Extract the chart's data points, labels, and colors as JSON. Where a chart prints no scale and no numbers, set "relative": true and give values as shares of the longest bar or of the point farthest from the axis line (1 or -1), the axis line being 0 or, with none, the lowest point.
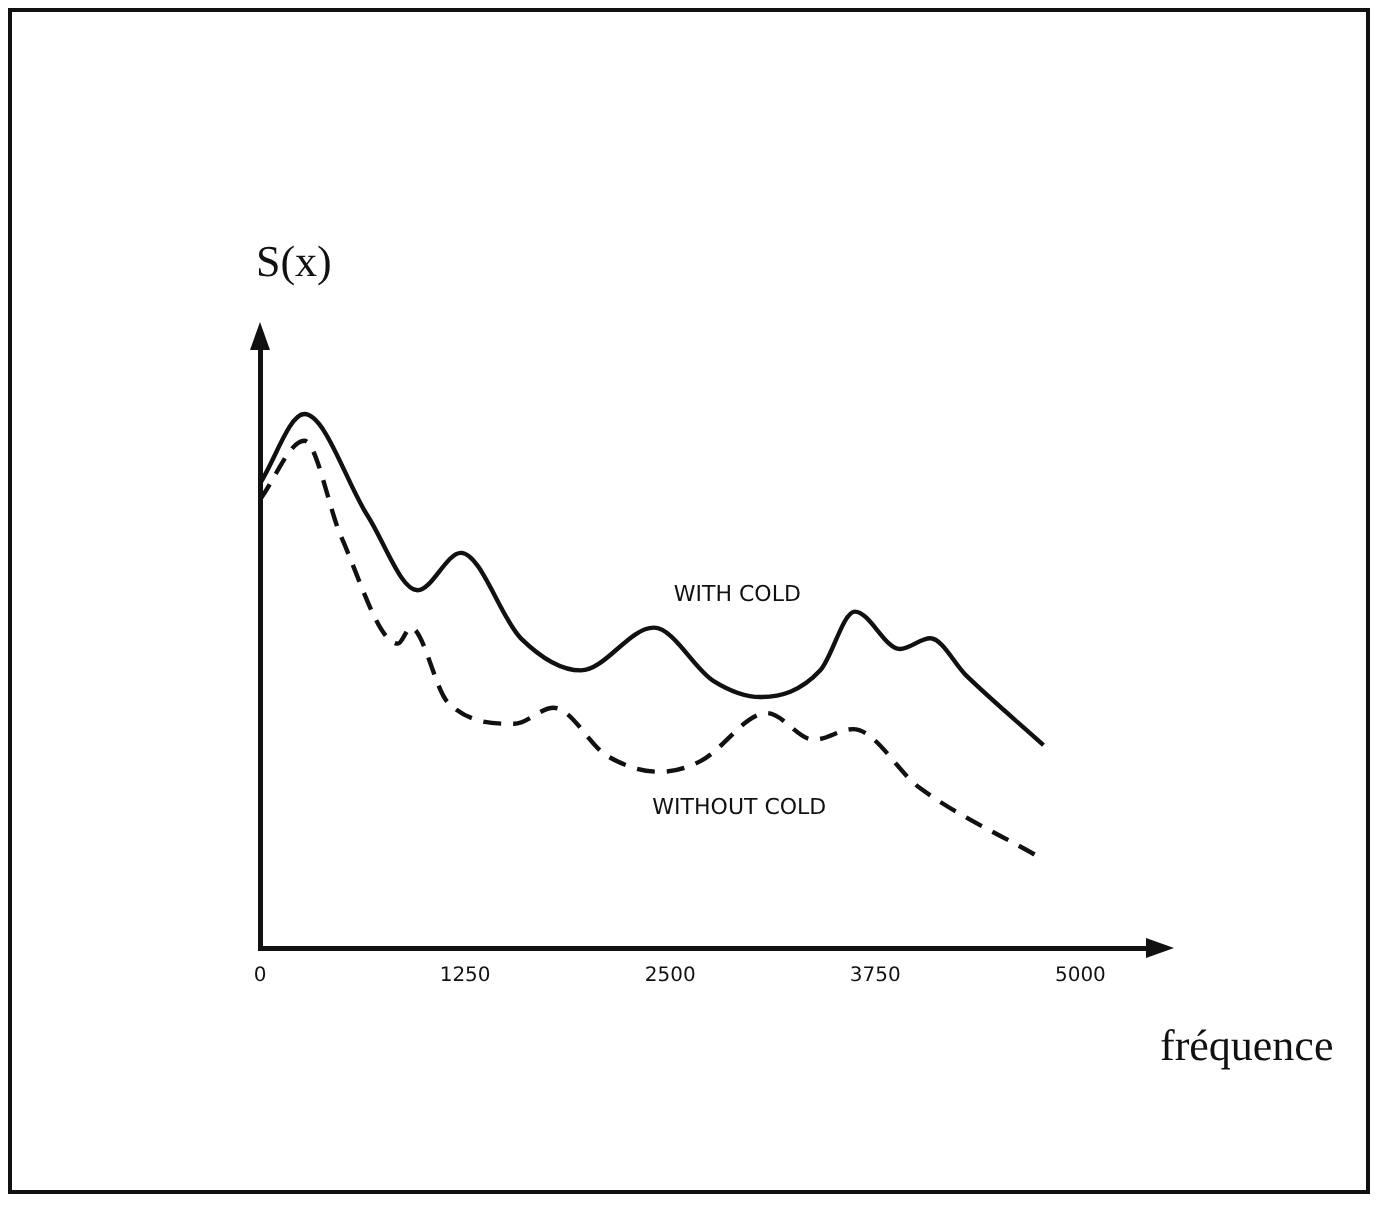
{
  "chart_data": {
    "type": "line",
    "xlabel": "fréquence",
    "ylabel": "S(x)",
    "relative": true,
    "xlim": [
      0,
      5400
    ],
    "xticks": [
      0,
      1250,
      2500,
      3750,
      5000
    ],
    "grid": false,
    "legend": false,
    "marker": "none",
    "series": [
      {
        "name": "WITH COLD",
        "color": "#111111",
        "line_style": "solid",
        "x": [
          0,
          270,
          655,
          960,
          1225,
          1590,
          1955,
          2400,
          2765,
          3050,
          3415,
          3625,
          3900,
          4085,
          4305,
          4775
        ],
        "values": [
          0.87,
          1,
          0.81,
          0.67,
          0.74,
          0.58,
          0.52,
          0.6,
          0.5,
          0.47,
          0.52,
          0.63,
          0.56,
          0.58,
          0.51,
          0.38
        ]
      },
      {
        "name": "WITHOUT COLD",
        "color": "#111111",
        "line_style": "dashed",
        "x": [
          0,
          270,
          495,
          840,
          920,
          1145,
          1550,
          1790,
          2115,
          2440,
          2685,
          3090,
          3375,
          3615,
          4020,
          4750
        ],
        "values": [
          0.84,
          0.95,
          0.77,
          0.57,
          0.6,
          0.46,
          0.42,
          0.45,
          0.36,
          0.33,
          0.35,
          0.44,
          0.39,
          0.41,
          0.3,
          0.17
        ]
      }
    ]
  }
}
